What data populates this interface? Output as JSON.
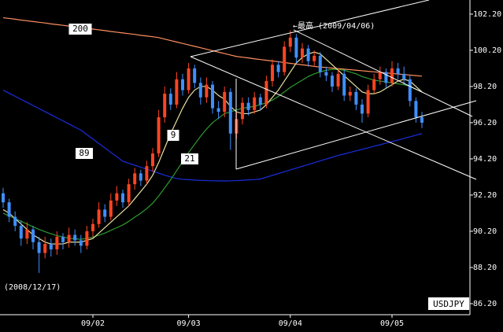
{
  "chart_data": {
    "type": "candlestick",
    "title": "USDJPY",
    "annotations": [
      "←最高 (2009/04/06)",
      "(2008/12/17)"
    ],
    "up_color": "#ff4422",
    "down_color": "#3f8fff",
    "categories": [
      null,
      null,
      null,
      null,
      null,
      null,
      null,
      null,
      null,
      null,
      null,
      null,
      null,
      null,
      null,
      "09/02",
      null,
      null,
      null,
      null,
      null,
      null,
      null,
      null,
      null,
      null,
      null,
      null,
      null,
      null,
      null,
      "09/03",
      null,
      null,
      null,
      null,
      null,
      null,
      null,
      null,
      null,
      null,
      null,
      null,
      null,
      null,
      null,
      null,
      "09/04",
      null,
      null,
      null,
      null,
      null,
      null,
      null,
      null,
      null,
      null,
      null,
      null,
      null,
      null,
      null,
      null,
      "09/05",
      null,
      null,
      null,
      null,
      null
    ],
    "open": [
      92.3,
      91.8,
      91.0,
      90.5,
      89.8,
      90.3,
      89.6,
      89.0,
      89.5,
      89.2,
      89.9,
      89.6,
      90.0,
      89.7,
      89.4,
      90.2,
      90.6,
      91.4,
      91.0,
      91.9,
      92.3,
      91.8,
      92.8,
      93.4,
      93.0,
      93.8,
      94.5,
      96.5,
      97.8,
      97.2,
      98.6,
      98.0,
      99.2,
      98.4,
      97.6,
      98.3,
      97.0,
      96.8,
      97.9,
      95.6,
      96.4,
      97.3,
      96.9,
      97.6,
      97.2,
      98.5,
      99.4,
      99.0,
      100.4,
      100.9,
      99.8,
      100.3,
      99.6,
      99.9,
      99.0,
      98.8,
      98.2,
      98.9,
      97.7,
      97.9,
      97.2,
      96.7,
      98.0,
      98.6,
      99.0,
      98.4,
      99.2,
      98.9,
      98.6,
      97.4,
      96.5
    ],
    "high": [
      92.6,
      92.0,
      91.3,
      90.8,
      90.7,
      90.5,
      89.9,
      89.9,
      89.8,
      90.2,
      90.1,
      90.4,
      90.3,
      90.0,
      90.5,
      90.9,
      91.8,
      91.7,
      92.3,
      92.7,
      92.5,
      93.1,
      93.7,
      93.6,
      94.1,
      94.8,
      96.9,
      98.2,
      98.1,
      99.0,
      98.9,
      99.5,
      99.4,
      98.7,
      98.7,
      98.5,
      97.4,
      98.2,
      98.1,
      96.8,
      97.6,
      97.6,
      97.9,
      97.8,
      98.8,
      99.7,
      99.6,
      100.7,
      101.3,
      101.1,
      100.6,
      100.5,
      100.2,
      100.1,
      99.3,
      99.0,
      99.2,
      99.1,
      98.2,
      98.1,
      97.5,
      98.3,
      98.9,
      99.3,
      99.2,
      99.6,
      99.5,
      99.3,
      98.8,
      97.6,
      96.8
    ],
    "low": [
      91.5,
      90.7,
      90.2,
      89.4,
      89.5,
      89.2,
      87.9,
      88.7,
      88.8,
      88.9,
      89.2,
      89.3,
      89.4,
      89.0,
      89.2,
      89.9,
      90.4,
      90.7,
      90.8,
      91.6,
      91.5,
      91.6,
      92.5,
      92.7,
      92.8,
      93.5,
      94.3,
      96.2,
      96.9,
      97.0,
      97.7,
      97.8,
      98.1,
      97.2,
      97.3,
      96.7,
      96.4,
      96.5,
      94.7,
      95.3,
      96.1,
      96.6,
      96.7,
      96.9,
      97.0,
      98.2,
      98.7,
      98.8,
      100.1,
      99.5,
      99.5,
      99.3,
      99.3,
      98.7,
      98.5,
      97.9,
      98.0,
      97.4,
      97.4,
      96.9,
      96.2,
      96.5,
      97.8,
      98.3,
      98.1,
      98.2,
      98.6,
      98.3,
      97.1,
      96.2,
      95.9
    ],
    "close": [
      91.8,
      91.0,
      90.5,
      89.8,
      90.3,
      89.6,
      89.0,
      89.5,
      89.2,
      89.9,
      89.6,
      90.0,
      89.7,
      89.4,
      90.2,
      90.6,
      91.4,
      91.0,
      91.9,
      92.3,
      91.8,
      92.8,
      93.4,
      93.0,
      93.8,
      94.5,
      96.5,
      97.8,
      97.2,
      98.6,
      98.0,
      99.2,
      98.4,
      97.6,
      98.3,
      97.0,
      96.8,
      97.9,
      95.6,
      96.4,
      97.3,
      96.9,
      97.6,
      97.2,
      98.5,
      99.4,
      99.0,
      100.4,
      100.9,
      99.8,
      100.3,
      99.6,
      99.9,
      99.0,
      98.8,
      98.2,
      98.9,
      97.7,
      97.9,
      97.2,
      96.7,
      98.0,
      98.6,
      99.0,
      98.4,
      99.2,
      98.9,
      98.6,
      97.4,
      96.5,
      96.2
    ],
    "series": [
      {
        "name": "200",
        "color": "#ff9060",
        "values": [
          102.0,
          101.96,
          101.92,
          101.87,
          101.83,
          101.79,
          101.75,
          101.71,
          101.66,
          101.62,
          101.58,
          101.54,
          101.5,
          101.45,
          101.41,
          101.37,
          101.33,
          101.29,
          101.24,
          101.2,
          101.16,
          101.12,
          101.08,
          101.03,
          100.99,
          100.95,
          100.9,
          100.82,
          100.74,
          100.66,
          100.58,
          100.5,
          100.42,
          100.34,
          100.26,
          100.18,
          100.1,
          100.02,
          99.94,
          99.86,
          99.82,
          99.78,
          99.73,
          99.69,
          99.65,
          99.61,
          99.57,
          99.52,
          99.48,
          99.44,
          99.4,
          99.36,
          99.31,
          99.28,
          99.25,
          99.22,
          99.19,
          99.16,
          99.13,
          99.1,
          99.07,
          99.04,
          99.01,
          98.98,
          98.95,
          98.92,
          98.89,
          98.86,
          98.83,
          98.8,
          98.77
        ]
      },
      {
        "name": "89",
        "color": "#1a2ee0",
        "values": [
          98.0,
          97.83,
          97.66,
          97.49,
          97.32,
          97.15,
          96.98,
          96.81,
          96.64,
          96.47,
          96.3,
          96.13,
          95.96,
          95.79,
          95.54,
          95.3,
          95.05,
          94.81,
          94.56,
          94.32,
          94.07,
          93.96,
          93.85,
          93.74,
          93.63,
          93.52,
          93.41,
          93.3,
          93.2,
          93.12,
          93.07,
          93.05,
          93.03,
          93.01,
          93.0,
          92.99,
          92.98,
          92.98,
          92.99,
          93.0,
          93.02,
          93.04,
          93.06,
          93.09,
          93.19,
          93.29,
          93.39,
          93.49,
          93.59,
          93.69,
          93.79,
          93.89,
          93.99,
          94.09,
          94.19,
          94.29,
          94.39,
          94.47,
          94.56,
          94.64,
          94.73,
          94.81,
          94.9,
          94.98,
          95.07,
          95.15,
          95.24,
          95.33,
          95.42,
          95.51,
          95.6
        ]
      },
      {
        "name": "21",
        "color": "#2e9a2e",
        "values": [
          91.2,
          91.05,
          90.9,
          90.75,
          90.6,
          90.45,
          90.3,
          90.18,
          90.06,
          89.96,
          89.88,
          89.82,
          89.78,
          89.76,
          89.8,
          89.88,
          89.98,
          90.1,
          90.25,
          90.4,
          90.55,
          90.75,
          90.98,
          91.2,
          91.45,
          91.75,
          92.15,
          92.6,
          93.05,
          93.55,
          94.05,
          94.55,
          95.0,
          95.45,
          95.85,
          96.2,
          96.45,
          96.7,
          96.8,
          96.9,
          97.0,
          97.05,
          97.1,
          97.2,
          97.3,
          97.45,
          97.65,
          97.9,
          98.15,
          98.35,
          98.55,
          98.75,
          98.9,
          99.0,
          99.1,
          99.15,
          99.15,
          99.1,
          99.0,
          98.9,
          98.75,
          98.65,
          98.55,
          98.5,
          98.45,
          98.4,
          98.35,
          98.3,
          98.2,
          98.05,
          97.9
        ]
      },
      {
        "name": "9",
        "color": "#e8e0a0",
        "values": [
          91.4,
          91.2,
          90.9,
          90.6,
          90.3,
          90.0,
          89.8,
          89.6,
          89.5,
          89.5,
          89.5,
          89.6,
          89.6,
          89.6,
          89.7,
          89.8,
          90.1,
          90.4,
          90.7,
          91.0,
          91.3,
          91.6,
          92.0,
          92.4,
          92.8,
          93.3,
          94.0,
          94.8,
          95.6,
          96.3,
          97.0,
          97.6,
          98.0,
          98.2,
          98.2,
          98.0,
          97.7,
          97.5,
          97.1,
          96.8,
          96.7,
          96.7,
          96.8,
          96.9,
          97.2,
          97.6,
          98.0,
          98.5,
          99.0,
          99.5,
          99.8,
          100.0,
          100.1,
          100.0,
          99.7,
          99.4,
          99.1,
          98.8,
          98.5,
          98.2,
          97.9,
          97.8,
          97.8,
          97.9,
          98.1,
          98.3,
          98.5,
          98.6,
          98.5,
          98.2,
          97.9
        ]
      }
    ],
    "ylim": [
      85.59,
      102.98
    ],
    "yticks": [
      {
        "value": 86.2,
        "label": "86.20"
      },
      {
        "value": 88.2,
        "label": "88.20"
      },
      {
        "value": 90.2,
        "label": "90.20"
      },
      {
        "value": 92.2,
        "label": "92.20"
      },
      {
        "value": 94.2,
        "label": "94.20"
      },
      {
        "value": 96.2,
        "label": "96.20"
      },
      {
        "value": 98.2,
        "label": "98.20"
      },
      {
        "value": 100.2,
        "label": "100.20"
      },
      {
        "value": 102.2,
        "label": "102.20"
      }
    ]
  }
}
